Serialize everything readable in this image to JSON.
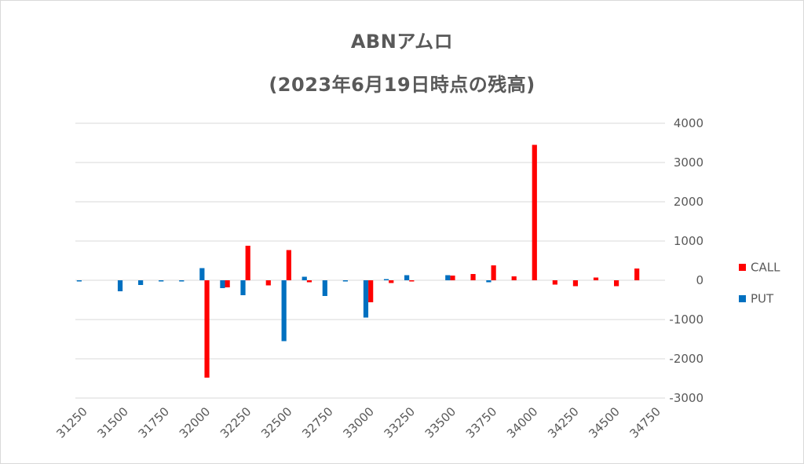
{
  "chart_data": {
    "type": "bar",
    "title": "ABNアムロ",
    "subtitle": "(2023年6月19日時点の残高)",
    "categories": [
      "31250",
      "31375",
      "31500",
      "31625",
      "31750",
      "31875",
      "32000",
      "32125",
      "32250",
      "32375",
      "32500",
      "32625",
      "32750",
      "32875",
      "33000",
      "33125",
      "33250",
      "33375",
      "33500",
      "33625",
      "33750",
      "33875",
      "34000",
      "34125",
      "34250",
      "34375",
      "34500",
      "34625",
      "34750"
    ],
    "x_tick_labels": [
      "31250",
      "31500",
      "31750",
      "32000",
      "32250",
      "32500",
      "32750",
      "33000",
      "33250",
      "33500",
      "33750",
      "34000",
      "34250",
      "34500",
      "34750"
    ],
    "series": [
      {
        "name": "CALL",
        "color": "#ff0000",
        "values": [
          0,
          0,
          0,
          0,
          0,
          0,
          -2480,
          -180,
          880,
          -130,
          770,
          -50,
          0,
          0,
          -560,
          -70,
          -30,
          0,
          120,
          160,
          380,
          100,
          3450,
          -110,
          -150,
          70,
          -150,
          300,
          0
        ]
      },
      {
        "name": "PUT",
        "color": "#0070c0",
        "values": [
          -30,
          0,
          -280,
          -120,
          -30,
          -30,
          310,
          -200,
          -380,
          0,
          -1550,
          90,
          -400,
          -30,
          -950,
          30,
          130,
          0,
          130,
          0,
          -50,
          0,
          0,
          0,
          0,
          0,
          0,
          0,
          0
        ]
      }
    ],
    "ylim": [
      -3000,
      4000
    ],
    "yticks": [
      4000,
      3000,
      2000,
      1000,
      0,
      -1000,
      -2000,
      -3000
    ],
    "y_axis_side": "right",
    "grid": true,
    "legend_position": "right"
  }
}
